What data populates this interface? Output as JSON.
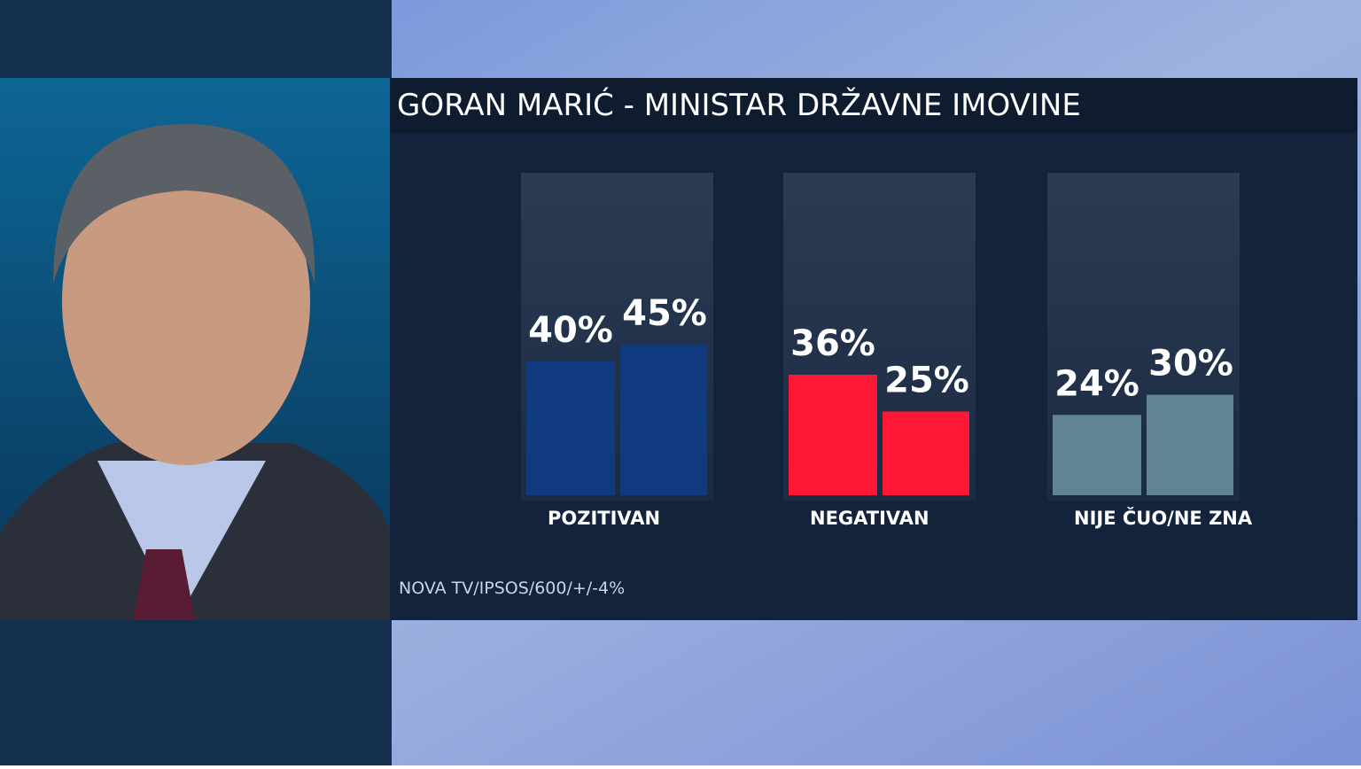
{
  "chart_data": {
    "type": "bar",
    "title": "GORAN MARIĆ - MINISTAR DRŽAVNE IMOVINE",
    "categories": [
      "POZITIVAN",
      "NEGATIVAN",
      "NIJE ČUO/NE ZNA"
    ],
    "colors": [
      "#0f3a80",
      "#fe1836",
      "#5f8595"
    ],
    "series": [
      {
        "values": [
          40,
          36,
          24
        ],
        "value_labels": [
          "40%",
          "36%",
          "24%"
        ]
      },
      {
        "values": [
          45,
          25,
          30
        ],
        "value_labels": [
          "45%",
          "25%",
          "30%"
        ]
      }
    ],
    "source": "NOVA TV/IPSOS/600/+/-4%"
  }
}
